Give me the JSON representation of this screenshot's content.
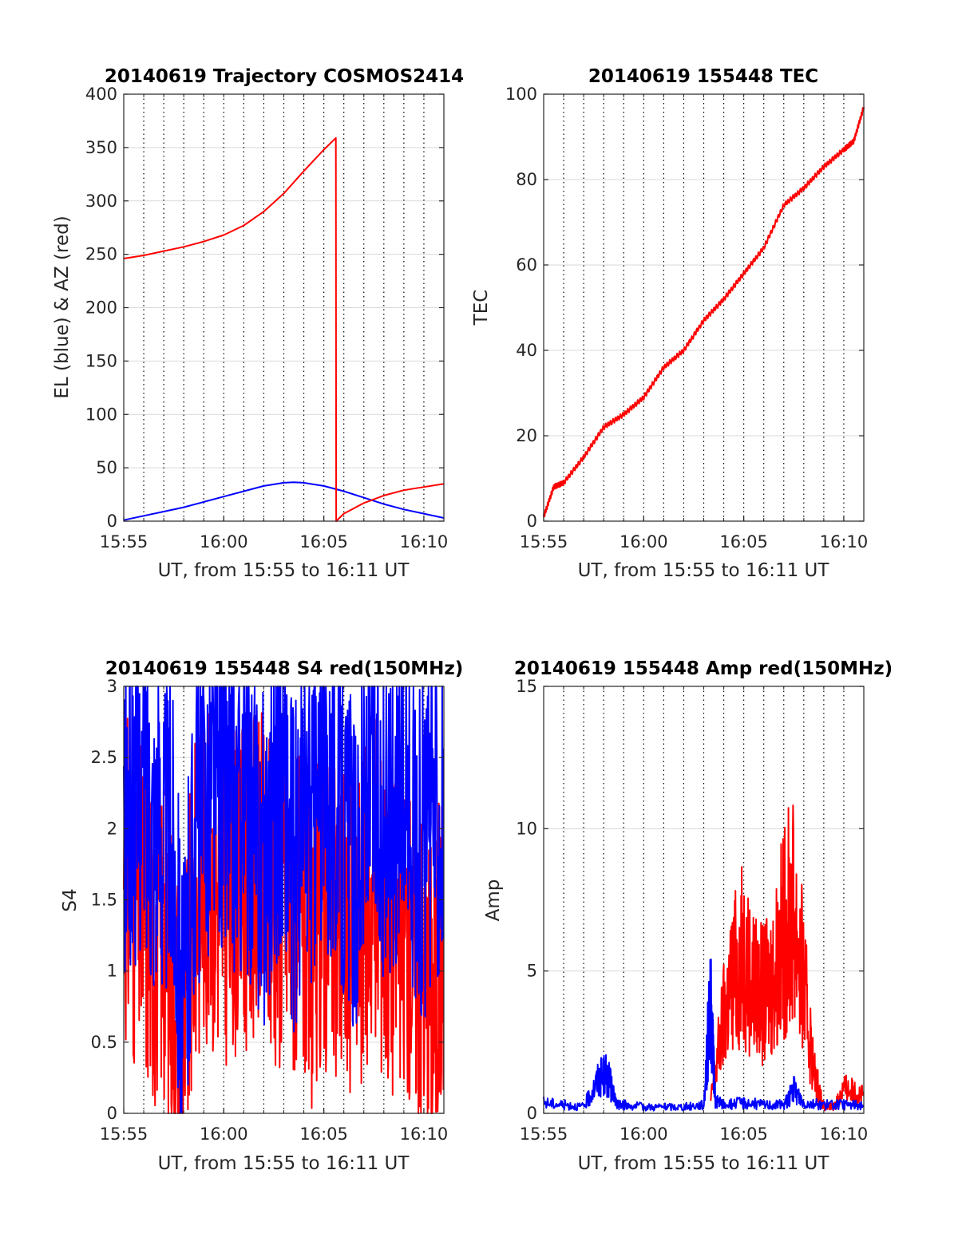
{
  "colors": {
    "el": "#0000ff",
    "az": "#ff0000",
    "tec": "#ff0000",
    "s4_red": "#ff0000",
    "s4_blue": "#0000ff",
    "amp_red": "#ff0000",
    "amp_blue": "#0000ff",
    "grid_major": "#000000",
    "grid_minor": "#d9d9d9"
  },
  "chart_data": [
    {
      "id": "trajectory",
      "type": "line",
      "title": "20140619 Trajectory COSMOS2414",
      "xlabel": "UT, from 15:55 to 16:11 UT",
      "ylabel": "EL (blue) & AZ (red)",
      "xlim": [
        "15:55",
        "16:11"
      ],
      "ylim": [
        0,
        400
      ],
      "x_ticks": [
        "15:55",
        "16:00",
        "16:05",
        "16:10"
      ],
      "y_ticks": [
        "0",
        "50",
        "100",
        "150",
        "200",
        "250",
        "300",
        "350",
        "400"
      ],
      "grid": "on",
      "series": [
        {
          "name": "EL (blue)",
          "color": "#0000ff",
          "x": [
            "15:55",
            "15:56",
            "15:57",
            "15:58",
            "15:59",
            "16:00",
            "16:01",
            "16:02",
            "16:03",
            "16:03:30",
            "16:04",
            "16:05",
            "16:06",
            "16:07",
            "16:08",
            "16:09",
            "16:10",
            "16:11"
          ],
          "values": [
            1,
            5,
            9,
            13,
            18,
            23,
            28,
            33,
            36,
            36.5,
            36,
            33,
            28,
            22,
            16,
            11,
            7,
            3
          ]
        },
        {
          "name": "AZ (red)",
          "color": "#ff0000",
          "x": [
            "15:55",
            "15:56",
            "15:57",
            "15:58",
            "15:59",
            "16:00",
            "16:01",
            "16:02",
            "16:03",
            "16:04",
            "16:05",
            "16:05:36",
            "16:05:37",
            "16:06",
            "16:07",
            "16:08",
            "16:09",
            "16:10",
            "16:11"
          ],
          "values": [
            246,
            249,
            253,
            257,
            262,
            268,
            277,
            290,
            307,
            328,
            348,
            359,
            0,
            7,
            17,
            24,
            29,
            32,
            35
          ]
        }
      ]
    },
    {
      "id": "tec",
      "type": "line",
      "title": "20140619 155448 TEC",
      "xlabel": "UT, from 15:55 to 16:11 UT",
      "ylabel": "TEC",
      "xlim": [
        "15:55",
        "16:11"
      ],
      "ylim": [
        0,
        100
      ],
      "x_ticks": [
        "15:55",
        "16:00",
        "16:05",
        "16:10"
      ],
      "y_ticks": [
        "0",
        "20",
        "40",
        "60",
        "80",
        "100"
      ],
      "grid": "on",
      "series": [
        {
          "name": "TEC",
          "color": "#ff0000",
          "x": [
            "15:55",
            "15:55:30",
            "15:56",
            "15:57",
            "15:58",
            "15:59",
            "16:00",
            "16:01",
            "16:02",
            "16:03",
            "16:04",
            "16:05",
            "16:06",
            "16:07",
            "16:08",
            "16:09",
            "16:10",
            "16:10:30",
            "16:11"
          ],
          "values": [
            1,
            8,
            9,
            15,
            22,
            25,
            29,
            36,
            40,
            47,
            52,
            58,
            64,
            74,
            78,
            83,
            87,
            89,
            97
          ]
        }
      ]
    },
    {
      "id": "s4",
      "type": "line",
      "title": "20140619 155448 S4 red(150MHz)",
      "xlabel": "UT, from 15:55 to 16:11 UT",
      "ylabel": "S4",
      "xlim": [
        "15:55",
        "16:11"
      ],
      "ylim": [
        0,
        3
      ],
      "x_ticks": [
        "15:55",
        "16:00",
        "16:05",
        "16:10"
      ],
      "y_ticks": [
        "0",
        "0.5",
        "1",
        "1.5",
        "2",
        "2.5",
        "3"
      ],
      "grid": "on",
      "series": [
        {
          "name": "red",
          "color": "#ff0000",
          "x": [
            "15:55",
            "15:55:30",
            "15:56",
            "15:56:30",
            "15:57",
            "15:57:30",
            "15:58",
            "15:58:30",
            "15:59",
            "15:59:30",
            "16:00",
            "16:00:30",
            "16:01",
            "16:01:30",
            "16:02",
            "16:02:30",
            "16:03",
            "16:03:30",
            "16:04",
            "16:04:30",
            "16:05",
            "16:05:30",
            "16:06",
            "16:06:30",
            "16:07",
            "16:07:30",
            "16:08",
            "16:08:30",
            "16:09",
            "16:09:30",
            "16:10",
            "16:10:30",
            "16:11"
          ],
          "values": [
            1.7,
            1.5,
            1.4,
            1.2,
            1.3,
            0.9,
            0.5,
            1.4,
            1.7,
            1.6,
            1.5,
            1.6,
            1.6,
            1.7,
            1.6,
            1.5,
            1.5,
            1.4,
            1.3,
            1.2,
            1.5,
            1.3,
            1.4,
            1.3,
            1.4,
            1.6,
            1.4,
            1.3,
            1.3,
            1.2,
            1.0,
            0.8,
            1.3
          ]
        },
        {
          "name": "blue",
          "color": "#0000ff",
          "x": [
            "15:55",
            "15:55:30",
            "15:56",
            "15:56:30",
            "15:57",
            "15:57:30",
            "15:58",
            "15:58:30",
            "15:59",
            "15:59:30",
            "16:00",
            "16:00:30",
            "16:01",
            "16:01:30",
            "16:02",
            "16:02:30",
            "16:03",
            "16:03:30",
            "16:04",
            "16:04:30",
            "16:05",
            "16:05:30",
            "16:06",
            "16:06:30",
            "16:07",
            "16:07:30",
            "16:08",
            "16:08:30",
            "16:09",
            "16:09:30",
            "16:10",
            "16:10:30",
            "16:11"
          ],
          "values": [
            2.0,
            2.2,
            2.3,
            2.1,
            2.0,
            1.9,
            0.6,
            2.0,
            2.2,
            2.4,
            2.3,
            2.1,
            2.2,
            2.0,
            1.8,
            2.2,
            2.3,
            1.6,
            2.1,
            2.0,
            2.4,
            2.2,
            2.0,
            1.7,
            2.1,
            2.3,
            2.0,
            2.2,
            2.4,
            2.0,
            1.8,
            2.1,
            2.2
          ]
        }
      ]
    },
    {
      "id": "amp",
      "type": "line",
      "title": "20140619 155448 Amp red(150MHz)",
      "xlabel": "UT, from 15:55 to 16:11 UT",
      "ylabel": "Amp",
      "xlim": [
        "15:55",
        "16:11"
      ],
      "ylim": [
        0,
        15
      ],
      "x_ticks": [
        "15:55",
        "16:00",
        "16:05",
        "16:10"
      ],
      "y_ticks": [
        "0",
        "5",
        "10",
        "15"
      ],
      "grid": "on",
      "series": [
        {
          "name": "red",
          "color": "#ff0000",
          "x": [
            "16:03:20",
            "16:04",
            "16:04:30",
            "16:05",
            "16:05:30",
            "16:06",
            "16:06:30",
            "16:07",
            "16:07:30",
            "16:08",
            "16:08:30",
            "16:09",
            "16:09:30",
            "16:10",
            "16:10:30",
            "16:11"
          ],
          "values": [
            0.5,
            4.5,
            6.5,
            7.5,
            6.0,
            5.5,
            6.5,
            8.5,
            9.5,
            6.0,
            2.0,
            0.3,
            0.3,
            1.2,
            1.0,
            0.8
          ]
        },
        {
          "name": "blue",
          "color": "#0000ff",
          "x": [
            "15:55",
            "15:56",
            "15:57",
            "15:57:45",
            "15:58:10",
            "15:58:40",
            "15:59",
            "16:00",
            "16:01",
            "16:02",
            "16:03",
            "16:03:20",
            "16:03:35",
            "16:04",
            "16:05",
            "16:06",
            "16:07",
            "16:07:30",
            "16:08",
            "16:09",
            "16:10",
            "16:11"
          ],
          "values": [
            0.5,
            0.4,
            0.3,
            1.6,
            1.8,
            0.4,
            0.4,
            0.3,
            0.3,
            0.3,
            0.4,
            5.2,
            0.6,
            0.4,
            0.5,
            0.4,
            0.4,
            1.1,
            0.5,
            0.4,
            0.4,
            0.4
          ]
        }
      ]
    }
  ]
}
